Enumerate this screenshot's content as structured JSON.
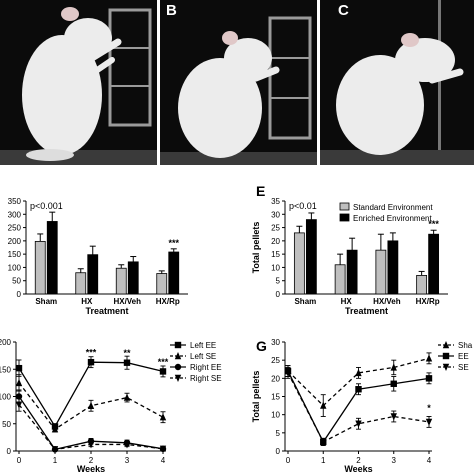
{
  "panel_letters": {
    "b": "B",
    "c": "C",
    "e": "E",
    "g": "G"
  },
  "colors": {
    "photo_background": "#0b0b0b",
    "rat": "#ececec",
    "black_bar": "#000000",
    "grey_bar": "#bfbfbf"
  },
  "chart_data": [
    {
      "id": "panel-d",
      "type": "bar",
      "annotation": "p<0.001",
      "xlabel": "Treatment",
      "ylabel": "",
      "ylim": [
        0,
        350
      ],
      "yticks": [
        0,
        50,
        100,
        150,
        200,
        250,
        300,
        350
      ],
      "categories": [
        "Sham",
        "HX",
        "HX/Veh",
        "HX/Rp"
      ],
      "series": [
        {
          "name": "Standard Environment",
          "color": "#bfbfbf",
          "values": [
            198,
            80,
            97,
            77
          ],
          "errors": [
            28,
            15,
            13,
            10
          ]
        },
        {
          "name": "Enriched Environment",
          "color": "#000000",
          "values": [
            273,
            148,
            121,
            158
          ],
          "errors": [
            35,
            32,
            20,
            12
          ]
        }
      ],
      "significance": [
        {
          "category": "HX/Rp",
          "text": "***"
        }
      ]
    },
    {
      "id": "panel-e",
      "type": "bar",
      "annotation": "p<0.01",
      "xlabel": "Treatment",
      "ylabel": "Total pellets",
      "ylim": [
        0,
        35
      ],
      "yticks": [
        0,
        5,
        10,
        15,
        20,
        25,
        30,
        35
      ],
      "categories": [
        "Sham",
        "HX",
        "HX/Veh",
        "HX/Rp"
      ],
      "legend": [
        "Standard Environment",
        "Enriched Environment"
      ],
      "legend_position": "top-right",
      "series": [
        {
          "name": "Standard Environment",
          "color": "#bfbfbf",
          "values": [
            23,
            11,
            16.5,
            7
          ],
          "errors": [
            2.5,
            4,
            6,
            1.5
          ]
        },
        {
          "name": "Enriched Environment",
          "color": "#000000",
          "values": [
            28,
            16.5,
            20,
            22.5
          ],
          "errors": [
            2.5,
            4.5,
            3,
            1.5
          ]
        }
      ],
      "significance": [
        {
          "category": "HX/Rp",
          "text": "***"
        }
      ]
    },
    {
      "id": "panel-f",
      "type": "line",
      "xlabel": "Weeks",
      "ylabel": "",
      "ylim": [
        0,
        200
      ],
      "yticks": [
        0,
        50,
        100,
        150,
        200
      ],
      "xticks": [
        0,
        1,
        2,
        3,
        4
      ],
      "legend_position": "top-right",
      "series": [
        {
          "name": "Left EE",
          "marker": "square",
          "dash": false,
          "x": [
            0,
            1,
            2,
            3,
            4
          ],
          "values": [
            152,
            45,
            163,
            162,
            146
          ],
          "errors": [
            15,
            5,
            10,
            12,
            10
          ]
        },
        {
          "name": "Left SE",
          "marker": "triangle-up",
          "dash": true,
          "x": [
            0,
            1,
            2,
            3,
            4
          ],
          "values": [
            125,
            40,
            83,
            98,
            62
          ],
          "errors": [
            15,
            5,
            10,
            8,
            10
          ]
        },
        {
          "name": "Right EE",
          "marker": "circle",
          "dash": false,
          "x": [
            0,
            1,
            2,
            3,
            4
          ],
          "values": [
            100,
            3,
            18,
            15,
            4
          ],
          "errors": [
            12,
            2,
            5,
            5,
            2
          ]
        },
        {
          "name": "Right SE",
          "marker": "triangle-down",
          "dash": true,
          "x": [
            0,
            1,
            2,
            3,
            4
          ],
          "values": [
            85,
            3,
            12,
            12,
            4
          ],
          "errors": [
            12,
            2,
            4,
            4,
            2
          ]
        }
      ],
      "significance": [
        {
          "x": 2,
          "y": 175,
          "text": "***"
        },
        {
          "x": 3,
          "y": 174,
          "text": "**"
        },
        {
          "x": 4,
          "y": 158,
          "text": "***"
        }
      ]
    },
    {
      "id": "panel-g",
      "type": "line",
      "xlabel": "Weeks",
      "ylabel": "Total pellets",
      "ylim": [
        0,
        30
      ],
      "yticks": [
        0,
        5,
        10,
        15,
        20,
        25,
        30
      ],
      "xticks": [
        0,
        1,
        2,
        3,
        4
      ],
      "legend_position": "top-right",
      "series": [
        {
          "name": "Sha",
          "marker": "triangle-up",
          "dash": true,
          "x": [
            0,
            1,
            2,
            3,
            4
          ],
          "values": [
            22,
            12.5,
            21.5,
            23,
            25.5
          ],
          "errors": [
            1.5,
            3,
            1.5,
            2,
            1.5
          ]
        },
        {
          "name": "EE",
          "marker": "square",
          "dash": false,
          "x": [
            0,
            1,
            2,
            3,
            4
          ],
          "values": [
            22,
            2.5,
            17,
            18.5,
            20
          ],
          "errors": [
            1.5,
            1,
            1.5,
            2,
            1.5
          ]
        },
        {
          "name": "SE",
          "marker": "triangle-down",
          "dash": true,
          "x": [
            0,
            1,
            2,
            3,
            4
          ],
          "values": [
            21.5,
            2.5,
            7.5,
            9.5,
            8
          ],
          "errors": [
            1.5,
            0.8,
            1.5,
            1.5,
            1.5
          ]
        }
      ],
      "significance": [
        {
          "x": 4,
          "y": 11,
          "text": "*"
        }
      ]
    }
  ]
}
